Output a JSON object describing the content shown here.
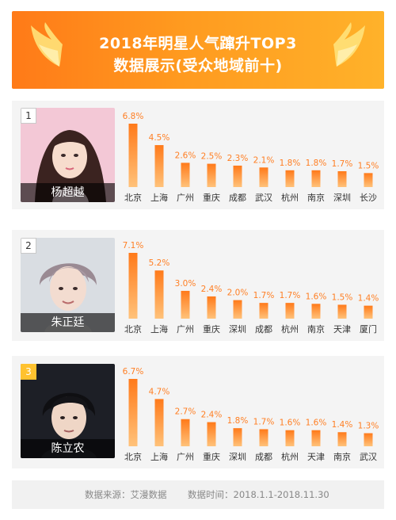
{
  "header": {
    "title_line1": "2018年明星人气蹿升TOP3",
    "title_line2": "数据展示(受众地域前十)"
  },
  "colors": {
    "accent": "#ff8a22",
    "bar_top": "#ff7a1a",
    "bar_bottom": "#ffc27a",
    "label": "#ff7f24"
  },
  "panels": [
    {
      "rank": "1",
      "name": "杨超越",
      "chart_data": {
        "type": "bar",
        "categories": [
          "北京",
          "上海",
          "广州",
          "重庆",
          "成都",
          "武汉",
          "杭州",
          "南京",
          "深圳",
          "长沙"
        ],
        "values": [
          6.8,
          4.5,
          2.6,
          2.5,
          2.3,
          2.1,
          1.8,
          1.8,
          1.7,
          1.5
        ],
        "labels": [
          "6.8%",
          "4.5%",
          "2.6%",
          "2.5%",
          "2.3%",
          "2.1%",
          "1.8%",
          "1.8%",
          "1.7%",
          "1.5%"
        ]
      }
    },
    {
      "rank": "2",
      "name": "朱正廷",
      "chart_data": {
        "type": "bar",
        "categories": [
          "北京",
          "上海",
          "广州",
          "重庆",
          "深圳",
          "成都",
          "杭州",
          "南京",
          "天津",
          "厦门"
        ],
        "values": [
          7.1,
          5.2,
          3.0,
          2.4,
          2.0,
          1.7,
          1.7,
          1.6,
          1.5,
          1.4
        ],
        "labels": [
          "7.1%",
          "5.2%",
          "3.0%",
          "2.4%",
          "2.0%",
          "1.7%",
          "1.7%",
          "1.6%",
          "1.5%",
          "1.4%"
        ]
      }
    },
    {
      "rank": "3",
      "name": "陈立农",
      "chart_data": {
        "type": "bar",
        "categories": [
          "北京",
          "上海",
          "广州",
          "重庆",
          "深圳",
          "成都",
          "杭州",
          "天津",
          "南京",
          "武汉"
        ],
        "values": [
          6.7,
          4.7,
          2.7,
          2.4,
          1.8,
          1.7,
          1.6,
          1.6,
          1.4,
          1.3
        ],
        "labels": [
          "6.7%",
          "4.7%",
          "2.7%",
          "2.4%",
          "1.8%",
          "1.7%",
          "1.6%",
          "1.6%",
          "1.4%",
          "1.3%"
        ]
      }
    }
  ],
  "footer": {
    "source": "数据来源：艾漫数据",
    "time": "数据时间：2018.1.1-2018.11.30"
  }
}
